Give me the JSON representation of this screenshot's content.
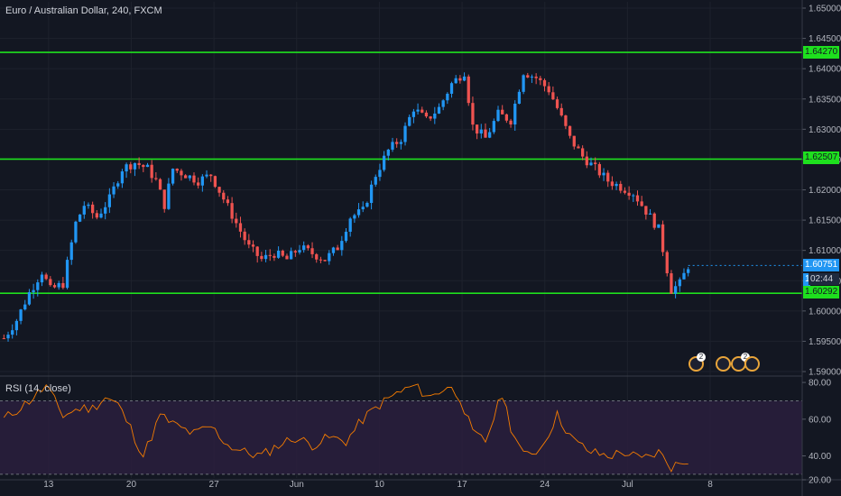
{
  "header": {
    "symbol_title": "Euro / Australian Dollar, 240, FXCM"
  },
  "rsi": {
    "label": "RSI (14, close)"
  },
  "colors": {
    "background": "#131722",
    "up": "#2196f3",
    "down": "#ef5350",
    "level_line": "#1ee01e",
    "rsi_line": "#f57c00",
    "rsi_band": "#2a1f3d"
  },
  "price_tags": {
    "r1": "1.64270",
    "r2": "1.62507",
    "current": "1.60751",
    "s1": "1.60292",
    "timer": "02:44",
    "hidden_prefix": "1."
  },
  "events": {
    "badge_a": "2",
    "badge_b": "2"
  },
  "chart_data": [
    {
      "type": "candlestick",
      "title": "Euro / Australian Dollar, 240, FXCM",
      "x_tick_labels": [
        "13",
        "20",
        "27",
        "Jun",
        "10",
        "17",
        "24",
        "Jul",
        "8"
      ],
      "y_tick_labels": [
        "1.59000",
        "1.59500",
        "1.60000",
        "1.60500",
        "1.61000",
        "1.61500",
        "1.62000",
        "1.62500",
        "1.63000",
        "1.63500",
        "1.64000",
        "1.64500",
        "1.65000"
      ],
      "ylim": [
        1.59,
        1.65
      ],
      "horizontal_levels": [
        1.6427,
        1.62507,
        1.60292
      ],
      "last_price": 1.60751,
      "approx_close_path": [
        [
          0,
          1.5955
        ],
        [
          3,
          1.5985
        ],
        [
          6,
          1.603
        ],
        [
          9,
          1.6065
        ],
        [
          11,
          1.6035
        ],
        [
          14,
          1.6045
        ],
        [
          17,
          1.6145
        ],
        [
          19,
          1.6175
        ],
        [
          22,
          1.6155
        ],
        [
          25,
          1.6185
        ],
        [
          28,
          1.6235
        ],
        [
          31,
          1.6245
        ],
        [
          34,
          1.6235
        ],
        [
          36,
          1.6215
        ],
        [
          38,
          1.6175
        ],
        [
          40,
          1.6235
        ],
        [
          43,
          1.6225
        ],
        [
          46,
          1.6215
        ],
        [
          49,
          1.6225
        ],
        [
          52,
          1.6185
        ],
        [
          55,
          1.6145
        ],
        [
          58,
          1.6105
        ],
        [
          61,
          1.6085
        ],
        [
          64,
          1.6095
        ],
        [
          67,
          1.6085
        ],
        [
          70,
          1.6105
        ],
        [
          73,
          1.6095
        ],
        [
          76,
          1.6085
        ],
        [
          79,
          1.6105
        ],
        [
          82,
          1.6155
        ],
        [
          85,
          1.6165
        ],
        [
          88,
          1.6225
        ],
        [
          91,
          1.6265
        ],
        [
          94,
          1.6285
        ],
        [
          97,
          1.6335
        ],
        [
          100,
          1.6315
        ],
        [
          103,
          1.6335
        ],
        [
          106,
          1.6375
        ],
        [
          109,
          1.6395
        ],
        [
          111,
          1.6305
        ],
        [
          114,
          1.6285
        ],
        [
          117,
          1.6325
        ],
        [
          120,
          1.6315
        ],
        [
          123,
          1.6395
        ],
        [
          126,
          1.6385
        ],
        [
          129,
          1.6365
        ],
        [
          131,
          1.6335
        ],
        [
          134,
          1.6285
        ],
        [
          137,
          1.6255
        ],
        [
          140,
          1.6235
        ],
        [
          143,
          1.6215
        ],
        [
          146,
          1.6205
        ],
        [
          149,
          1.6195
        ],
        [
          152,
          1.6165
        ],
        [
          155,
          1.6135
        ],
        [
          158,
          1.6035
        ],
        [
          160,
          1.6045
        ],
        [
          162,
          1.6075
        ]
      ]
    },
    {
      "type": "line",
      "title": "RSI (14, close)",
      "y_tick_labels": [
        "20.00",
        "40.00",
        "60.00",
        "80.00"
      ],
      "ylim": [
        28,
        82
      ],
      "overbought": 70,
      "oversold": 30,
      "approx_values": [
        [
          0,
          60
        ],
        [
          6,
          70
        ],
        [
          10,
          78
        ],
        [
          14,
          62
        ],
        [
          18,
          66
        ],
        [
          21,
          66
        ],
        [
          24,
          72
        ],
        [
          27,
          68
        ],
        [
          30,
          55
        ],
        [
          33,
          40
        ],
        [
          37,
          62
        ],
        [
          41,
          56
        ],
        [
          45,
          52
        ],
        [
          49,
          56
        ],
        [
          53,
          46
        ],
        [
          57,
          42
        ],
        [
          61,
          40
        ],
        [
          65,
          46
        ],
        [
          69,
          50
        ],
        [
          73,
          46
        ],
        [
          77,
          50
        ],
        [
          81,
          48
        ],
        [
          85,
          60
        ],
        [
          89,
          68
        ],
        [
          93,
          74
        ],
        [
          97,
          78
        ],
        [
          101,
          72
        ],
        [
          105,
          78
        ],
        [
          108,
          72
        ],
        [
          111,
          52
        ],
        [
          114,
          48
        ],
        [
          118,
          74
        ],
        [
          120,
          56
        ],
        [
          123,
          40
        ],
        [
          127,
          44
        ],
        [
          131,
          62
        ],
        [
          135,
          48
        ],
        [
          139,
          42
        ],
        [
          143,
          40
        ],
        [
          147,
          42
        ],
        [
          151,
          38
        ],
        [
          155,
          42
        ],
        [
          158,
          34
        ],
        [
          160,
          36
        ],
        [
          162,
          38
        ]
      ]
    }
  ]
}
